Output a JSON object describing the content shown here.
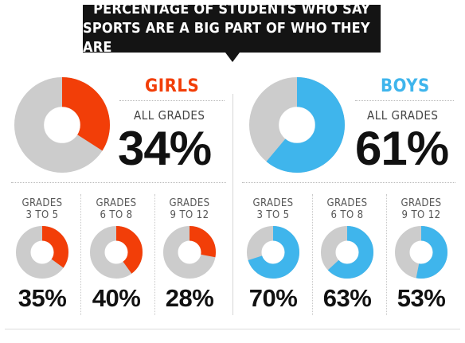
{
  "title": {
    "line1": "PERCENTAGE OF STUDENTS WHO SAY",
    "line2": "SPORTS ARE A BIG PART OF WHO THEY ARE"
  },
  "colors": {
    "girls": "#f23e08",
    "boys": "#3fb5ec",
    "remainder": "#cccccc",
    "text": "#111111"
  },
  "chart_data": [
    {
      "type": "pie",
      "group": "GIRLS",
      "label": "ALL GRADES",
      "value": 34,
      "display": "34%"
    },
    {
      "type": "pie",
      "group": "GIRLS",
      "label": [
        "GRADES",
        "3 TO 5"
      ],
      "value": 35,
      "display": "35%"
    },
    {
      "type": "pie",
      "group": "GIRLS",
      "label": [
        "GRADES",
        "6 TO 8"
      ],
      "value": 40,
      "display": "40%"
    },
    {
      "type": "pie",
      "group": "GIRLS",
      "label": [
        "GRADES",
        "9 TO 12"
      ],
      "value": 28,
      "display": "28%"
    },
    {
      "type": "pie",
      "group": "BOYS",
      "label": "ALL GRADES",
      "value": 61,
      "display": "61%"
    },
    {
      "type": "pie",
      "group": "BOYS",
      "label": [
        "GRADES",
        "3 TO 5"
      ],
      "value": 70,
      "display": "70%"
    },
    {
      "type": "pie",
      "group": "BOYS",
      "label": [
        "GRADES",
        "6 TO 8"
      ],
      "value": 63,
      "display": "63%"
    },
    {
      "type": "pie",
      "group": "BOYS",
      "label": [
        "GRADES",
        "9 TO 12"
      ],
      "value": 53,
      "display": "53%"
    }
  ]
}
